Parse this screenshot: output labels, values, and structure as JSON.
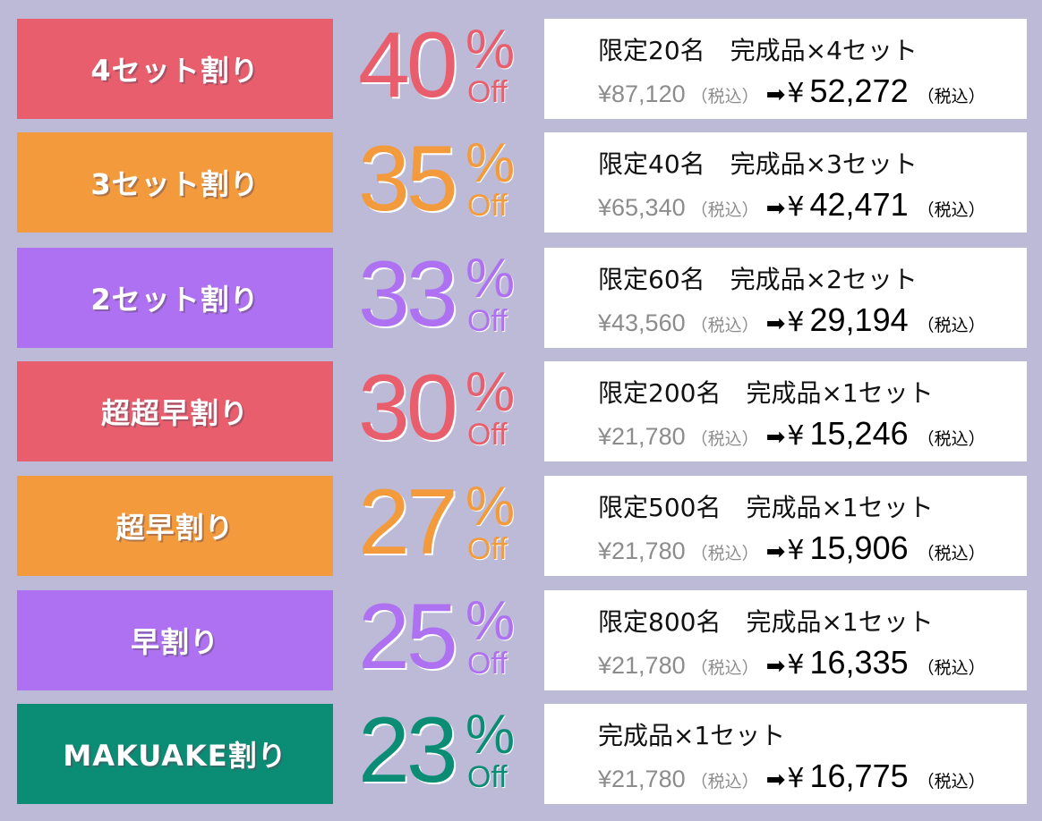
{
  "page_background": "#bcbad6",
  "rows": [
    {
      "plan": "4セット割り",
      "color": "#e85e6d",
      "discount": "40",
      "percent": "%",
      "off": "Off",
      "line1": "限定20名　完成品×4セット",
      "original": "¥87,120",
      "tax_note": "（税込）",
      "arrow": "➡",
      "yen": "¥",
      "price": "52,272",
      "price_tax_note": "（税込）"
    },
    {
      "plan": "3セット割り",
      "color": "#f39a3c",
      "discount": "35",
      "percent": "%",
      "off": "Off",
      "line1": "限定40名　完成品×3セット",
      "original": "¥65,340",
      "tax_note": "（税込）",
      "arrow": "➡",
      "yen": "¥",
      "price": "42,471",
      "price_tax_note": "（税込）"
    },
    {
      "plan": "2セット割り",
      "color": "#ad71f2",
      "discount": "33",
      "percent": "%",
      "off": "Off",
      "line1": "限定60名　完成品×2セット",
      "original": "¥43,560",
      "tax_note": "（税込）",
      "arrow": "➡",
      "yen": "¥",
      "price": "29,194",
      "price_tax_note": "（税込）"
    },
    {
      "plan": "超超早割り",
      "color": "#e85e6d",
      "discount": "30",
      "percent": "%",
      "off": "Off",
      "line1": "限定200名　完成品×1セット",
      "original": "¥21,780",
      "tax_note": "（税込）",
      "arrow": "➡",
      "yen": "¥",
      "price": "15,246",
      "price_tax_note": "（税込）"
    },
    {
      "plan": "超早割り",
      "color": "#f39a3c",
      "discount": "27",
      "percent": "%",
      "off": "Off",
      "line1": "限定500名　完成品×1セット",
      "original": "¥21,780",
      "tax_note": "（税込）",
      "arrow": "➡",
      "yen": "¥",
      "price": "15,906",
      "price_tax_note": "（税込）"
    },
    {
      "plan": "早割り",
      "color": "#ad71f2",
      "discount": "25",
      "percent": "%",
      "off": "Off",
      "line1": "限定800名　完成品×1セット",
      "original": "¥21,780",
      "tax_note": "（税込）",
      "arrow": "➡",
      "yen": "¥",
      "price": "16,335",
      "price_tax_note": "（税込）"
    },
    {
      "plan": "MAKUAKE割り",
      "color": "#0b8c74",
      "discount": "23",
      "percent": "%",
      "off": "Off",
      "line1": "完成品×1セット",
      "original": "¥21,780",
      "tax_note": "（税込）",
      "arrow": "➡",
      "yen": "¥",
      "price": "16,775",
      "price_tax_note": "（税込）"
    }
  ]
}
